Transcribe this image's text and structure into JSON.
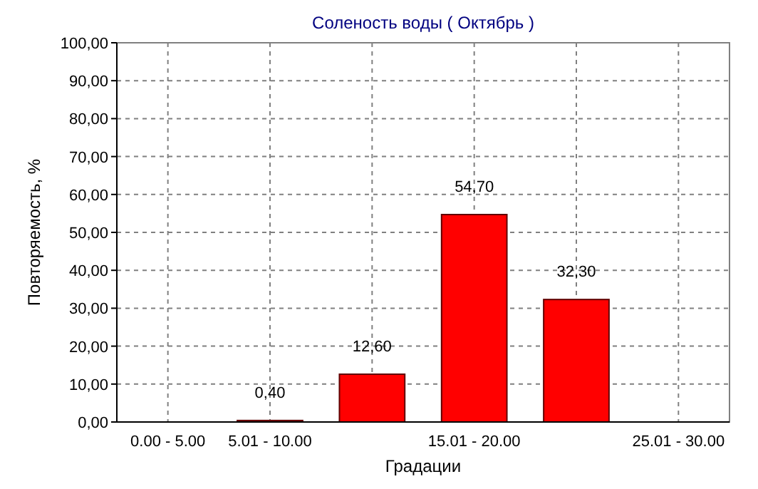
{
  "chart_data": {
    "type": "bar",
    "title": "Соленость воды    ( Октябрь )",
    "xlabel": "Градации",
    "ylabel": "Повторяемость, %",
    "categories": [
      "0.00 - 5.00",
      "5.01 - 10.00",
      null,
      "15.01 - 20.00",
      null,
      "25.01 - 30.00"
    ],
    "values": [
      0,
      0.4,
      12.6,
      54.7,
      32.3,
      0
    ],
    "value_labels": [
      null,
      "0,40",
      "12,60",
      "54,70",
      "32,30",
      null
    ],
    "color": "#ff0000",
    "ylim": [
      0,
      100
    ],
    "yticks": [
      {
        "value": 0,
        "label": "0,00"
      },
      {
        "value": 10,
        "label": "10,00"
      },
      {
        "value": 20,
        "label": "20,00"
      },
      {
        "value": 30,
        "label": "30,00"
      },
      {
        "value": 40,
        "label": "40,00"
      },
      {
        "value": 50,
        "label": "50,00"
      },
      {
        "value": 60,
        "label": "60,00"
      },
      {
        "value": 70,
        "label": "70,00"
      },
      {
        "value": 80,
        "label": "80,00"
      },
      {
        "value": 90,
        "label": "90,00"
      },
      {
        "value": 100,
        "label": "100,00"
      }
    ],
    "grid": true
  }
}
